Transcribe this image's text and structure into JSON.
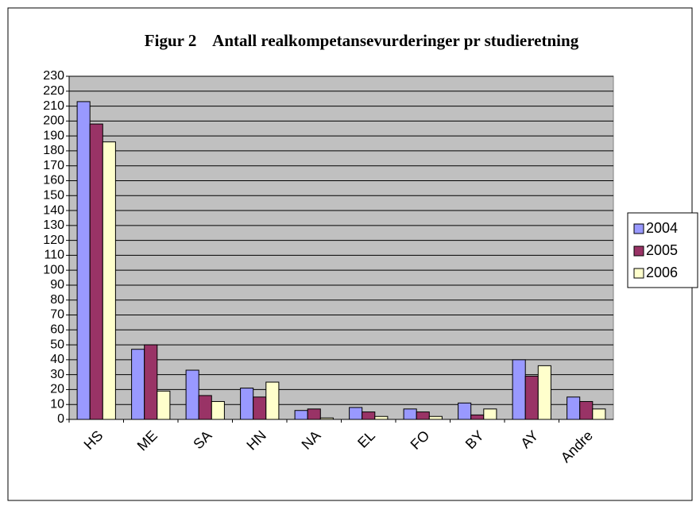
{
  "chart_data": {
    "type": "bar",
    "title": "Figur 2    Antall realkompetansevurderinger pr studieretning",
    "categories": [
      "HS",
      "ME",
      "SA",
      "HN",
      "NA",
      "EL",
      "FO",
      "BY",
      "AY",
      "Andre"
    ],
    "series": [
      {
        "name": "2004",
        "color": "#9999ff",
        "values": [
          213,
          47,
          33,
          21,
          6,
          8,
          7,
          11,
          40,
          15
        ]
      },
      {
        "name": "2005",
        "color": "#993366",
        "values": [
          198,
          50,
          16,
          15,
          7,
          5,
          5,
          3,
          29,
          12
        ]
      },
      {
        "name": "2006",
        "color": "#ffffcc",
        "values": [
          186,
          19,
          12,
          25,
          1,
          2,
          2,
          7,
          36,
          7
        ]
      }
    ],
    "ylim": [
      0,
      230
    ],
    "yticks": [
      0,
      10,
      20,
      30,
      40,
      50,
      60,
      70,
      80,
      90,
      100,
      110,
      120,
      130,
      140,
      150,
      160,
      170,
      180,
      190,
      200,
      210,
      220,
      230
    ],
    "grid": true,
    "legend": "right"
  }
}
